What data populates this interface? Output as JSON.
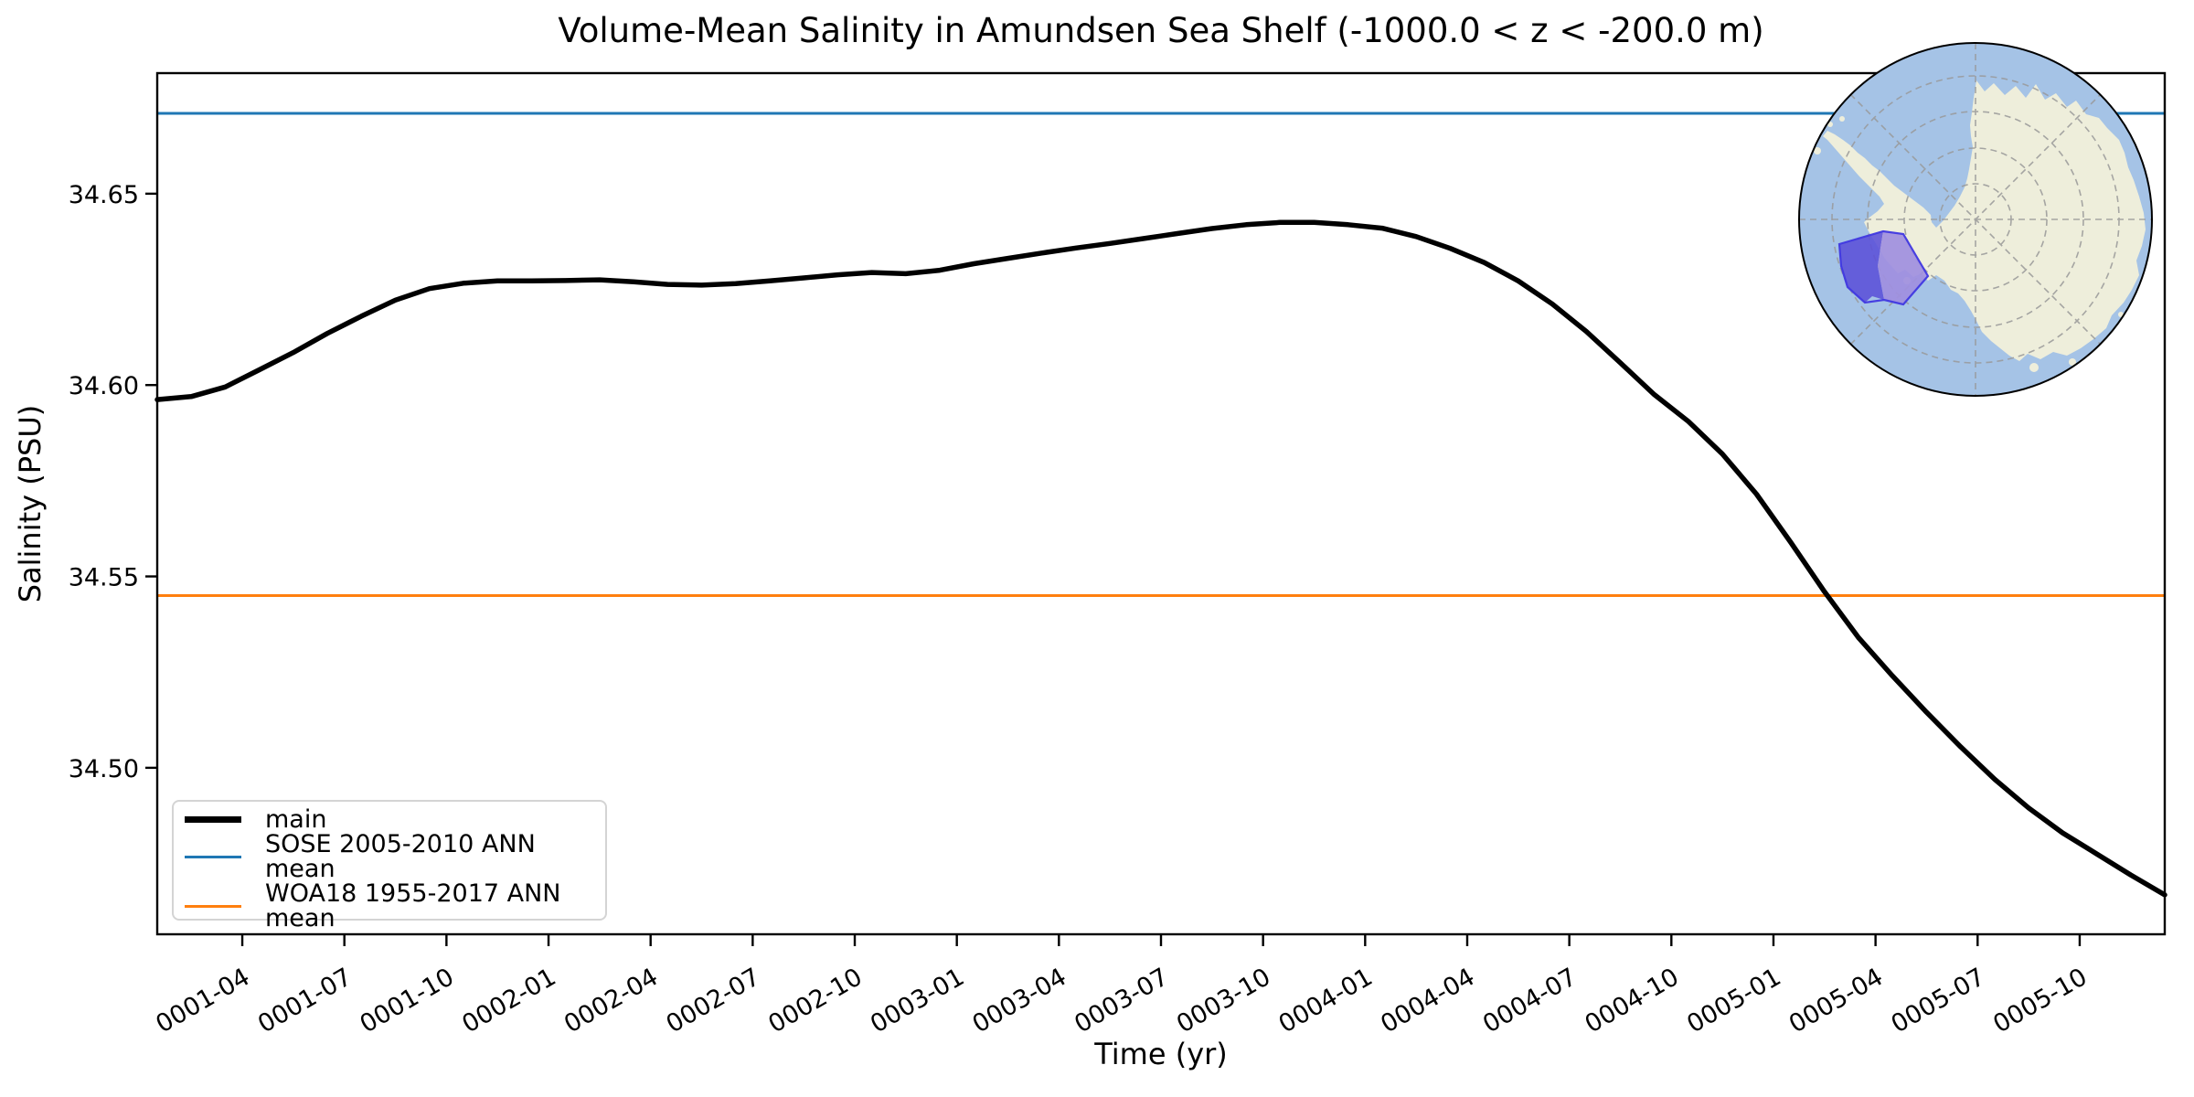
{
  "chart_data": {
    "type": "line",
    "title": "Volume-Mean Salinity in Amundsen Sea Shelf (-1000.0 < z < -200.0 m)",
    "xlabel": "Time (yr)",
    "ylabel": "Salinity (PSU)",
    "ylim": [
      34.4565,
      34.6815
    ],
    "grid": false,
    "legend_position": "lower left",
    "x": [
      "0001-01",
      "0001-02",
      "0001-03",
      "0001-04",
      "0001-05",
      "0001-06",
      "0001-07",
      "0001-08",
      "0001-09",
      "0001-10",
      "0001-11",
      "0001-12",
      "0002-01",
      "0002-02",
      "0002-03",
      "0002-04",
      "0002-05",
      "0002-06",
      "0002-07",
      "0002-08",
      "0002-09",
      "0002-10",
      "0002-11",
      "0002-12",
      "0003-01",
      "0003-02",
      "0003-03",
      "0003-04",
      "0003-05",
      "0003-06",
      "0003-07",
      "0003-08",
      "0003-09",
      "0003-10",
      "0003-11",
      "0003-12",
      "0004-01",
      "0004-02",
      "0004-03",
      "0004-04",
      "0004-05",
      "0004-06",
      "0004-07",
      "0004-08",
      "0004-09",
      "0004-10",
      "0004-11",
      "0004-12",
      "0005-01",
      "0005-02",
      "0005-03",
      "0005-04",
      "0005-05",
      "0005-06",
      "0005-07",
      "0005-08",
      "0005-09",
      "0005-10",
      "0005-11",
      "0005-12"
    ],
    "xticks": [
      "0001-04",
      "0001-07",
      "0001-10",
      "0002-01",
      "0002-04",
      "0002-07",
      "0002-10",
      "0003-01",
      "0003-04",
      "0003-07",
      "0003-10",
      "0004-01",
      "0004-04",
      "0004-07",
      "0004-10",
      "0005-01",
      "0005-04",
      "0005-07",
      "0005-10"
    ],
    "yticks": [
      34.5,
      34.55,
      34.6,
      34.65
    ],
    "series": [
      {
        "name": "main",
        "kind": "line",
        "color": "#000000",
        "linewidth": 5.5,
        "values": [
          34.5962,
          34.597,
          34.5995,
          34.604,
          34.6085,
          34.6135,
          34.618,
          34.6222,
          34.6252,
          34.6266,
          34.6272,
          34.6272,
          34.6273,
          34.6275,
          34.627,
          34.6263,
          34.6261,
          34.6265,
          34.6272,
          34.628,
          34.6288,
          34.6294,
          34.6291,
          34.63,
          34.6317,
          34.6331,
          34.6345,
          34.6358,
          34.637,
          34.6383,
          34.6396,
          34.6409,
          34.6419,
          34.6425,
          34.6425,
          34.6419,
          34.641,
          34.6388,
          34.6357,
          34.632,
          34.6272,
          34.6212,
          34.614,
          34.6058,
          34.5975,
          34.5905,
          34.582,
          34.5715,
          34.559,
          34.546,
          34.534,
          34.524,
          34.5145,
          34.5055,
          34.497,
          34.4895,
          34.483,
          34.4775,
          34.472,
          34.4668
        ]
      },
      {
        "name": "SOSE 2005-2010 ANN mean",
        "kind": "hline",
        "color": "#1f77b4",
        "linewidth": 3,
        "value": 34.671
      },
      {
        "name": "WOA18 1955-2017 ANN mean",
        "kind": "hline",
        "color": "#ff7f0e",
        "linewidth": 3,
        "value": 34.545
      }
    ]
  },
  "legend": {
    "entries": [
      {
        "label": "main",
        "color": "#000000",
        "lw": 7
      },
      {
        "label": "SOSE 2005-2010 ANN mean",
        "color": "#1f77b4",
        "lw": 3
      },
      {
        "label": "WOA18 1955-2017 ANN mean",
        "color": "#ff7f0e",
        "lw": 3
      }
    ]
  },
  "inset_map": {
    "kind": "south-polar-stereographic-locator",
    "highlighted_region": "Amundsen Sea Shelf",
    "colors": {
      "ocean": "#a5c3e6",
      "land": "#eeeedb",
      "graticule": "#999999",
      "outline": "#000000",
      "region_fill_light": "#a08fe0",
      "region_fill_dark": "#5b50d8",
      "region_edge": "#4038e0"
    }
  }
}
